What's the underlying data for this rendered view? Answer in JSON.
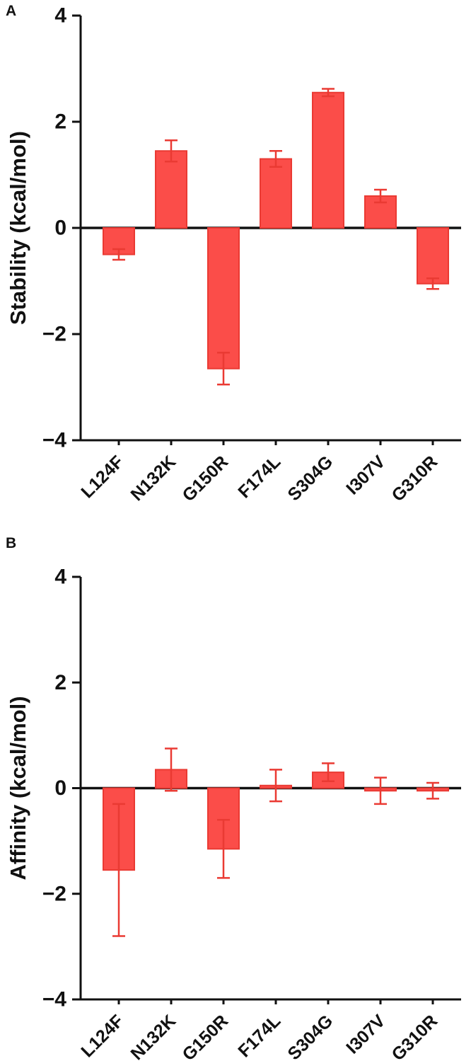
{
  "panels": [
    {
      "label": "A"
    },
    {
      "label": "B"
    }
  ],
  "chart_data": [
    {
      "type": "bar",
      "name": "stability-chart",
      "panel": "A",
      "title": "",
      "xlabel": "",
      "ylabel": "Stability (kcal/mol)",
      "categories": [
        "L124F",
        "N132K",
        "G150R",
        "F174L",
        "S304G",
        "I307V",
        "G310R"
      ],
      "values": [
        -0.5,
        1.45,
        -2.65,
        1.3,
        2.55,
        0.6,
        -1.05
      ],
      "errors": [
        0.1,
        0.2,
        0.3,
        0.15,
        0.07,
        0.12,
        0.1
      ],
      "ylim": [
        -4,
        4
      ],
      "yticks": [
        -4,
        -2,
        0,
        2,
        4
      ],
      "grid": false,
      "legend": "none",
      "colors": {
        "bar_fill": "#fb4d49",
        "bar_edge": "#ea3a33",
        "error": "#ea3a33",
        "axis": "#111111"
      }
    },
    {
      "type": "bar",
      "name": "affinity-chart",
      "panel": "B",
      "title": "",
      "xlabel": "",
      "ylabel": "Affinity (kcal/mol)",
      "categories": [
        "L124F",
        "N132K",
        "G150R",
        "F174L",
        "S304G",
        "I307V",
        "G310R"
      ],
      "values": [
        -1.55,
        0.35,
        -1.15,
        0.05,
        0.3,
        -0.05,
        -0.05
      ],
      "errors": [
        1.25,
        0.4,
        0.55,
        0.3,
        0.17,
        0.25,
        0.15
      ],
      "ylim": [
        -4,
        4
      ],
      "yticks": [
        -4,
        -2,
        0,
        2,
        4
      ],
      "grid": false,
      "legend": "none",
      "colors": {
        "bar_fill": "#fb4d49",
        "bar_edge": "#ea3a33",
        "error": "#ea3a33",
        "axis": "#111111"
      }
    }
  ]
}
